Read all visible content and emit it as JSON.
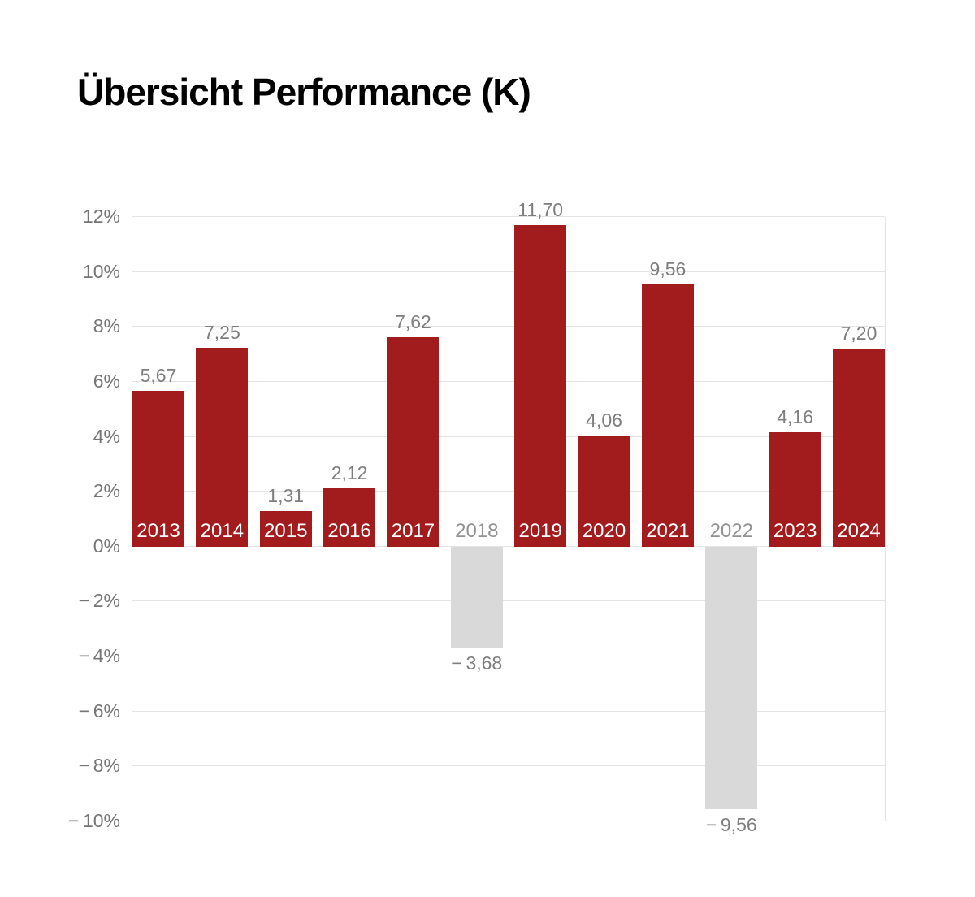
{
  "title": "Übersicht Performance (K)",
  "chart_data": {
    "type": "bar",
    "title": "Übersicht Performance (K)",
    "xlabel": "",
    "ylabel": "",
    "ylim": [
      -10,
      12
    ],
    "grid": true,
    "legend": false,
    "categories": [
      "2013",
      "2014",
      "2015",
      "2016",
      "2017",
      "2018",
      "2019",
      "2020",
      "2021",
      "2022",
      "2023",
      "2024"
    ],
    "values": [
      5.67,
      7.25,
      1.31,
      2.12,
      7.62,
      -3.68,
      11.7,
      4.06,
      9.56,
      -9.56,
      4.16,
      7.2
    ],
    "value_labels": [
      "5,67",
      "7,25",
      "1,31",
      "2,12",
      "7,62",
      "− 3,68",
      "11,70",
      "4,06",
      "9,56",
      "− 9,56",
      "4,16",
      "7,20"
    ],
    "y_ticks": [
      {
        "value": 12,
        "label": "12%"
      },
      {
        "value": 10,
        "label": "10%"
      },
      {
        "value": 8,
        "label": "8%"
      },
      {
        "value": 6,
        "label": "6%"
      },
      {
        "value": 4,
        "label": "4%"
      },
      {
        "value": 2,
        "label": "2%"
      },
      {
        "value": 0,
        "label": "0%"
      },
      {
        "value": -2,
        "label": "− 2%"
      },
      {
        "value": -4,
        "label": "− 4%"
      },
      {
        "value": -6,
        "label": "− 6%"
      },
      {
        "value": -8,
        "label": "− 8%"
      },
      {
        "value": -10,
        "label": "− 10%"
      }
    ],
    "colors": {
      "positive_bar": "#a21c1e",
      "negative_bar": "#d9d9d9",
      "gridline": "#e4e4e4",
      "axis_label": "#757575",
      "value_label": "#7e7e7e",
      "year_label_on_bar": "#ffffff",
      "year_label_negative": "#929292",
      "title": "#000000"
    }
  }
}
